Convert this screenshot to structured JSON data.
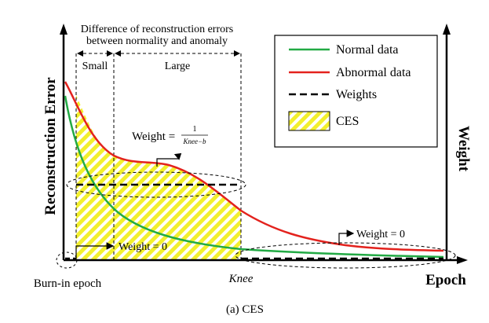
{
  "header": {
    "line1": "Difference of reconstruction errors",
    "line2": "between normality and anomaly",
    "small": "Small",
    "large": "Large"
  },
  "axes": {
    "y_left": "Reconstruction Error",
    "y_right": "Weight",
    "x": "Epoch",
    "knee": "Knee"
  },
  "legend": {
    "normal": "Normal data",
    "abnormal": "Abnormal data",
    "weights": "Weights",
    "ces": "CES"
  },
  "annotations": {
    "weight_formula_label": "Weight =",
    "formula_num": "1",
    "formula_den": "Knee−b",
    "weight_zero_left": "Weight = 0",
    "weight_zero_right": "Weight = 0",
    "burn_in": "Burn-in epoch"
  },
  "caption": "(a) CES",
  "colors": {
    "normal": "#22aa44",
    "abnormal": "#e3221d",
    "ces_fill": "#f2ef2e"
  }
}
